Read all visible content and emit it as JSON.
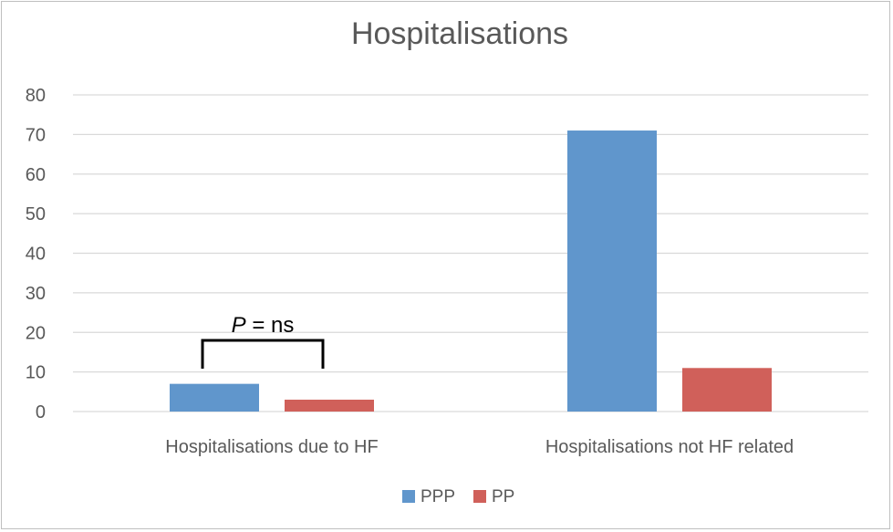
{
  "chart_data": {
    "type": "bar",
    "title": "Hospitalisations",
    "categories": [
      "Hospitalisations due to HF",
      "Hospitalisations not HF related"
    ],
    "series": [
      {
        "name": "PPP",
        "color": "#6096CC",
        "values": [
          7,
          71
        ]
      },
      {
        "name": "PP",
        "color": "#D0605A",
        "values": [
          3,
          11
        ]
      }
    ],
    "ylim": [
      0,
      80
    ],
    "yticks": [
      0,
      10,
      20,
      30,
      40,
      50,
      60,
      70,
      80
    ],
    "grid": true,
    "legend_position": "bottom",
    "annotation": {
      "category": "Hospitalisations due to HF",
      "p_symbol": "P",
      "text": " = ns"
    }
  }
}
